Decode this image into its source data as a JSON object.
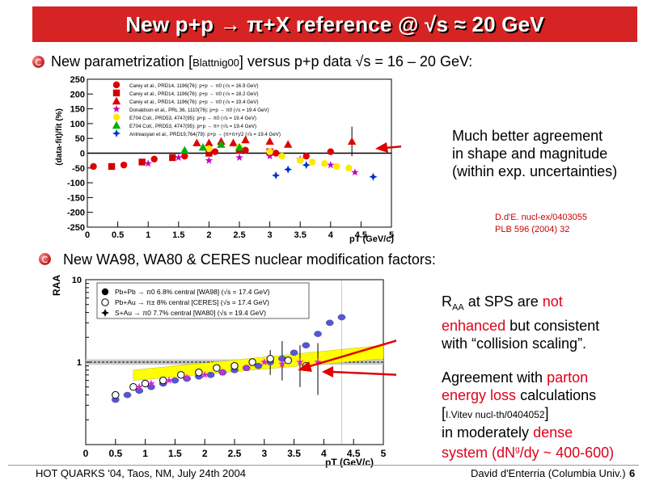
{
  "title": "New p+p → π+X reference @ √s ≈ 20 GeV",
  "bullet1": {
    "pre": "New parametrization [",
    "ref": "Blattnig00",
    "post": "] versus p+p data √s = 16 – 20 GeV:"
  },
  "bullet2": {
    "text": "New WA98, WA80 & CERES nuclear modification factors:"
  },
  "note1": {
    "line1": "Much better agreement",
    "line2": "in shape and magnitude",
    "line3": "(within exp. uncertainties)"
  },
  "ref_box": {
    "line1": "D.d'E. nucl-ex/0403055",
    "line2": "PLB 596 (2004) 32"
  },
  "note2": {
    "r": "R",
    "sub": "AA",
    "at_sps": " at SPS are ",
    "not": "not",
    "enhanced": "enhanced",
    "consistent": " but consistent",
    "with": "with “collision scaling”."
  },
  "note3": {
    "agree": "Agreement with ",
    "parton": "parton",
    "energy_loss": "energy loss",
    "calcs": " calculations",
    "ref_open": "[",
    "ref": "I.Vitev nucl-th/0404052",
    "ref_close": "]",
    "moderately": "in moderately ",
    "dense": "dense",
    "system": "system (dN",
    "g": "g",
    "dy": "/dy ~ 400-600)"
  },
  "footer": {
    "left": "HOT QUARKS '04, Taos, NM, July 24th 2004",
    "right": "David d'Enterria (Columbia Univ.)",
    "page": "6"
  },
  "colors": {
    "title_bg": "#d62424",
    "accent_red": "#e0001b",
    "band_yellow": "#ffff00",
    "band_gray": "#bdbdbd"
  },
  "chart_data": [
    {
      "type": "scatter",
      "ylabel": "(data-fit)/fit (%)",
      "xlabel": "pT (GeV/c)",
      "xlim": [
        0,
        5
      ],
      "ylim": [
        -250,
        250
      ],
      "x_ticks": [
        "0",
        "0.5",
        "1",
        "1.5",
        "2",
        "2.5",
        "3",
        "3.5",
        "4",
        "4.5",
        "5"
      ],
      "y_ticks": [
        "-250",
        "-200",
        "-150",
        "-100",
        "-50",
        "0",
        "50",
        "100",
        "150",
        "200",
        "250"
      ],
      "legend": [
        "Carey et al., PRD14, 1196(76): p+p → π0 (√s = 16.9 GeV)",
        "Carey et al., PRD14, 1196(76): p+p → π0 (√s = 18.2 GeV)",
        "Carey et al., PRD14, 1196(76): p+p → π0 (√s = 19.4 GeV)",
        "Donaldson et al., PRL 36, 1110(76): p+p → π0 (√s = 19.4 GeV)",
        "E704 Coll., PRD53, 4747(95): p+p → π0 (√s = 19.4 GeV)",
        "E704 Coll., PRD53, 4747(95): p+p → π+ (√s = 19.4 GeV)",
        "Antreasyan et al., PRD19,764(79): p+p → (π+π+)/2 (√s = 19.4 GeV)"
      ],
      "series": [
        {
          "x": [
            0.1,
            0.6,
            1.1,
            1.6,
            2.1,
            2.6,
            3.1,
            3.6,
            4.0
          ],
          "y": [
            -45,
            -40,
            -20,
            -10,
            5,
            10,
            0,
            -10,
            5
          ]
        },
        {
          "x": [
            0.4,
            0.9,
            1.4,
            2.0,
            2.5,
            3.0
          ],
          "y": [
            -45,
            -30,
            -15,
            0,
            10,
            5
          ]
        },
        {
          "x": [
            1.8,
            2.0,
            2.2,
            2.4,
            2.6,
            3.0,
            3.3,
            4.35
          ],
          "y": [
            35,
            35,
            40,
            35,
            45,
            40,
            30,
            40
          ]
        },
        {
          "x": [
            1.0,
            1.5,
            2.0,
            2.5,
            3.0,
            3.5,
            4.0,
            4.4
          ],
          "y": [
            -35,
            -15,
            -25,
            -15,
            -10,
            -20,
            -40,
            -65
          ]
        },
        {
          "x": [
            2.0,
            2.5,
            3.0,
            3.2,
            3.5,
            3.7,
            3.9,
            4.1,
            4.3
          ],
          "y": [
            15,
            20,
            5,
            -10,
            -25,
            -30,
            -35,
            -45,
            -50
          ]
        },
        {
          "x": [
            1.6,
            1.9,
            2.2,
            2.5
          ],
          "y": [
            10,
            20,
            30,
            20
          ]
        },
        {
          "x": [
            3.1,
            3.3,
            3.6,
            4.7
          ],
          "y": [
            -75,
            -55,
            -40,
            -80
          ]
        }
      ],
      "band": [
        -50,
        50
      ]
    },
    {
      "type": "scatter",
      "ylabel": "RAA",
      "xlabel": "pT (GeV/c)",
      "xlim": [
        0,
        5
      ],
      "y_scale": "log",
      "ylim": [
        0.1,
        10
      ],
      "x_ticks": [
        "0",
        "0.5",
        "1",
        "1.5",
        "2",
        "2.5",
        "3",
        "3.5",
        "4",
        "4.5",
        "5"
      ],
      "y_ticks": [
        "1",
        "10"
      ],
      "legend": [
        "Pb+Pb → π0 6.8% central [WA98] (√s = 17.4 GeV)",
        "Pb+Au → π± 8% central [CERES] (√s = 17.4 GeV)",
        "S+Au → π0 7.7% central [WA80] (√s = 19.4 GeV)"
      ],
      "series": [
        {
          "x": [
            0.5,
            0.7,
            0.9,
            1.1,
            1.3,
            1.5,
            1.7,
            1.9,
            2.1,
            2.3,
            2.5,
            2.7,
            2.9,
            3.1,
            3.3,
            3.5,
            3.7,
            3.9,
            4.1,
            4.3
          ],
          "y": [
            0.35,
            0.4,
            0.45,
            0.5,
            0.55,
            0.6,
            0.63,
            0.67,
            0.7,
            0.75,
            0.8,
            0.85,
            0.9,
            1.0,
            1.1,
            1.3,
            1.6,
            2.2,
            3.0,
            3.5
          ]
        },
        {
          "x": [
            0.5,
            0.8,
            1.0,
            1.3,
            1.6,
            1.9,
            2.2,
            2.5,
            2.8,
            3.1,
            3.4,
            3.7
          ],
          "y": [
            0.4,
            0.5,
            0.55,
            0.6,
            0.7,
            0.75,
            0.85,
            0.9,
            1.0,
            1.1,
            1.05,
            0.9
          ]
        },
        {
          "x": [
            0.9,
            1.1,
            1.4,
            1.7,
            2.0,
            2.3,
            2.7,
            3.0,
            3.3,
            3.6,
            3.9
          ],
          "y": [
            0.5,
            0.55,
            0.6,
            0.65,
            0.7,
            0.75,
            0.85,
            1.0,
            0.95,
            1.0,
            1.0
          ]
        }
      ],
      "theory_band_x": [
        0.8,
        5.0
      ],
      "theory_band_low": [
        0.6,
        1.1
      ],
      "theory_band_high": [
        0.8,
        1.6
      ]
    }
  ]
}
